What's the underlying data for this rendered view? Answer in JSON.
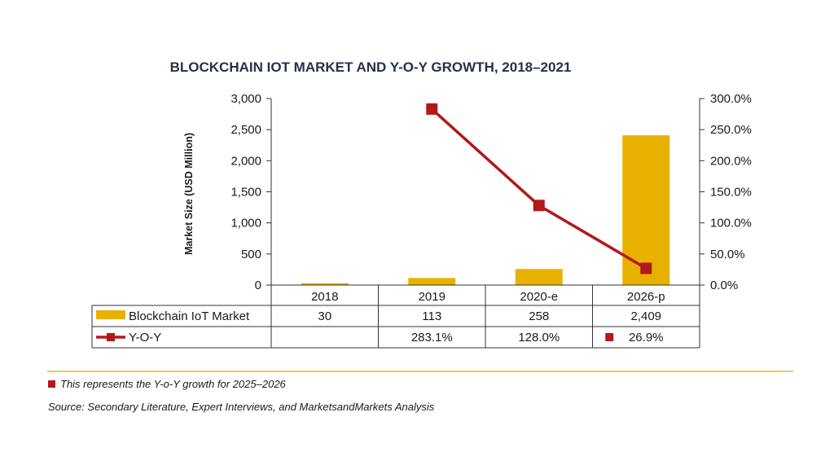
{
  "chart_data": {
    "type": "bar",
    "title": "BLOCKCHAIN IOT MARKET AND Y-O-Y GROWTH, 2018–2021",
    "ylabel": "Market Size (USD Million)",
    "ylabel_right": "",
    "categories": [
      "2018",
      "2019",
      "2020-e",
      "2026-p"
    ],
    "ylim": [
      0,
      3000
    ],
    "y2lim": [
      0,
      300
    ],
    "y_ticks": [
      "3,000",
      "2,500",
      "2,000",
      "1,500",
      "1,000",
      "500",
      "0"
    ],
    "y2_ticks": [
      "300.0%",
      "250.0%",
      "200.0%",
      "150.0%",
      "100.0%",
      "50.0%",
      "0.0%"
    ],
    "series": [
      {
        "name": "Blockchain IoT Market",
        "type": "bar",
        "axis": "left",
        "values": [
          30,
          113,
          258,
          2409
        ],
        "labels": [
          "30",
          "113",
          "258",
          "2,409"
        ],
        "color": "#e8b100"
      },
      {
        "name": "Y-O-Y",
        "type": "line",
        "axis": "right",
        "values": [
          null,
          283.1,
          128.0,
          26.9
        ],
        "labels": [
          "",
          "283.1%",
          "128.0%",
          "26.9%"
        ],
        "color": "#b01a1a"
      }
    ],
    "grid": false,
    "legend": "data-table"
  },
  "footnote": "This represents the Y-o-Y growth for 2025–2026",
  "source": "Source: Secondary Literature, Expert Interviews, and MarketsandMarkets Analysis",
  "colors": {
    "bar": "#e8b100",
    "line": "#b01a1a",
    "divider": "#d9a400",
    "axis": "#333333"
  }
}
